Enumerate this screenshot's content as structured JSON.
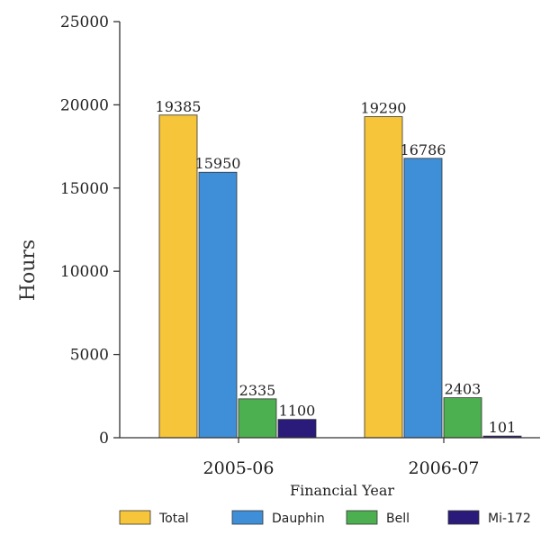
{
  "chart_data": {
    "type": "bar",
    "title": "",
    "xlabel": "Financial Year",
    "ylabel": "Hours",
    "categories": [
      "2005-06",
      "2006-07"
    ],
    "ylim": [
      0,
      25000
    ],
    "yticks": [
      0,
      5000,
      10000,
      15000,
      20000,
      25000
    ],
    "grid": false,
    "legend_position": "bottom",
    "series": [
      {
        "name": "Total",
        "values": [
          19385,
          19290
        ],
        "color": "#f7c53a"
      },
      {
        "name": "Dauphin",
        "values": [
          15950,
          16786
        ],
        "color": "#3f8fd8"
      },
      {
        "name": "Bell",
        "values": [
          2335,
          2403
        ],
        "color": "#4caf50"
      },
      {
        "name": "Mi-172",
        "values": [
          1100,
          101
        ],
        "color": "#2a1a7a"
      }
    ]
  }
}
